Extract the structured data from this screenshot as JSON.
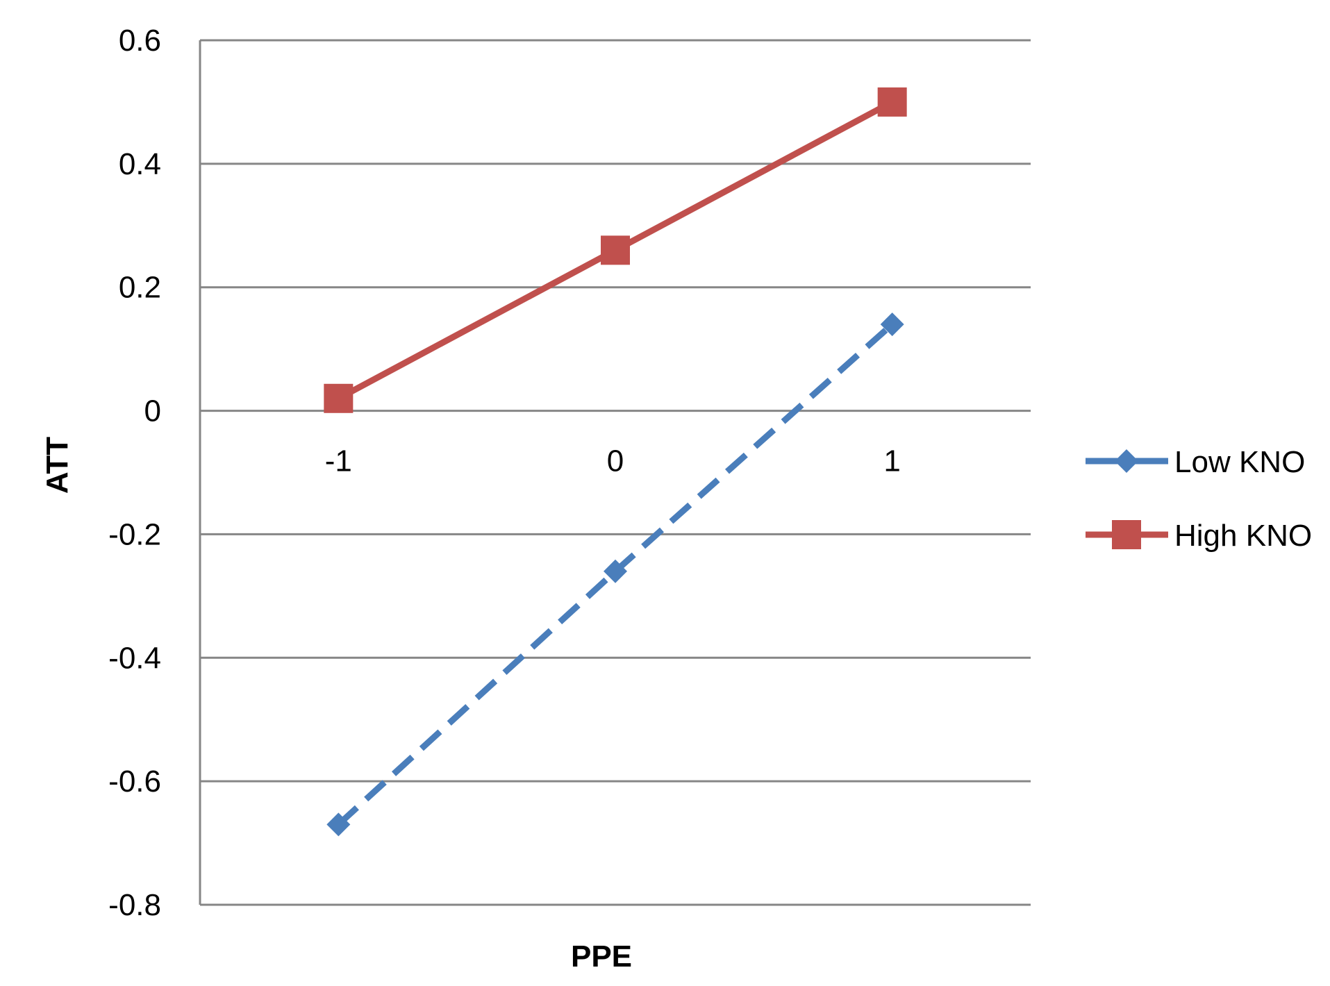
{
  "chart_data": {
    "type": "line",
    "xlabel": "PPE",
    "ylabel": "ATT",
    "categories": [
      "-1",
      "0",
      "1"
    ],
    "ylim": [
      -0.8,
      0.6
    ],
    "yticks": [
      0.6,
      0.4,
      0.2,
      0,
      -0.2,
      -0.4,
      -0.6,
      -0.8
    ],
    "ytick_labels": [
      "0.6",
      "0.4",
      "0.2",
      "0",
      "-0.2",
      "-0.4",
      "-0.6",
      "-0.8"
    ],
    "grid": true,
    "legend_position": "right",
    "series": [
      {
        "name": "Low KNO",
        "values": [
          -0.67,
          -0.26,
          0.14
        ],
        "color": "#4a7ebb",
        "line_style": "dashed",
        "marker": "diamond"
      },
      {
        "name": "High KNO",
        "values": [
          0.02,
          0.26,
          0.5
        ],
        "color": "#c0504d",
        "line_style": "solid",
        "marker": "square"
      }
    ]
  }
}
